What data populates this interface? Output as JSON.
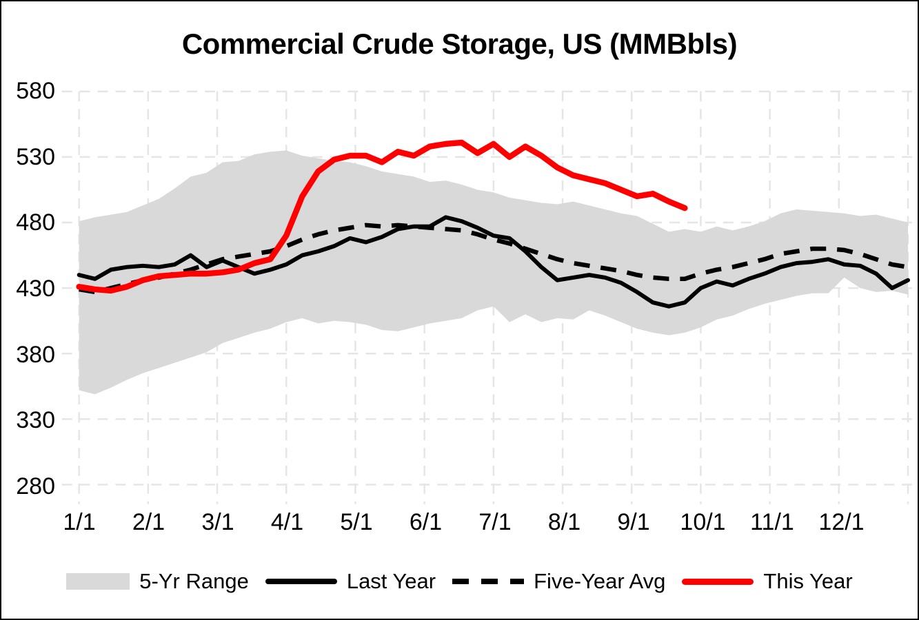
{
  "chart_data": {
    "type": "line",
    "title": "Commercial Crude Storage, US (MMBbls)",
    "subtitle": "",
    "x_axis": {
      "tick_labels": [
        "1/1",
        "2/1",
        "3/1",
        "4/1",
        "5/1",
        "6/1",
        "7/1",
        "8/1",
        "9/1",
        "10/1",
        "11/1",
        "12/1"
      ],
      "unit": "week of year",
      "points_per_year": 53
    },
    "y_axis": {
      "ticks": [
        580,
        530,
        480,
        430,
        380,
        330,
        280
      ],
      "min": 280,
      "max": 580,
      "unit": "MMBbls"
    },
    "grid": "dashed, light gray, horizontal and vertical at month starts",
    "legend_position": "bottom-center",
    "colors": {
      "range_fill": "#D9D9D9",
      "line_black": "#000000",
      "line_red": "#FF0000",
      "gridline": "#E5E5E5",
      "text": "#000000",
      "background": "#FFFFFF"
    },
    "series": [
      {
        "name": "5-Yr Range",
        "type": "band",
        "upper": [
          481,
          484,
          486,
          488,
          493,
          498,
          506,
          515,
          518,
          526,
          527,
          532,
          534,
          535,
          531,
          529,
          527,
          526,
          523,
          519,
          517,
          515,
          511,
          512,
          509,
          505,
          503,
          499,
          497,
          495,
          494,
          496,
          493,
          490,
          487,
          485,
          479,
          473,
          475,
          473,
          477,
          474,
          477,
          481,
          487,
          490,
          489,
          488,
          487,
          485,
          486,
          483,
          480
        ],
        "lower": [
          352,
          349,
          354,
          360,
          365,
          369,
          373,
          377,
          381,
          388,
          392,
          396,
          399,
          404,
          407,
          403,
          405,
          404,
          402,
          398,
          397,
          400,
          403,
          405,
          407,
          413,
          416,
          404,
          410,
          404,
          407,
          406,
          413,
          409,
          404,
          399,
          396,
          394,
          396,
          400,
          406,
          409,
          414,
          418,
          421,
          424,
          426,
          426,
          438,
          430,
          427,
          428,
          425
        ]
      },
      {
        "name": "Last Year",
        "type": "line",
        "dash": "solid",
        "color_key": "line_black",
        "values": [
          440,
          437,
          444,
          446,
          447,
          446,
          448,
          455,
          446,
          451,
          446,
          441,
          444,
          448,
          455,
          458,
          462,
          468,
          465,
          469,
          475,
          477,
          477,
          484,
          481,
          476,
          470,
          468,
          458,
          446,
          436,
          438,
          440,
          438,
          434,
          427,
          419,
          416,
          419,
          430,
          435,
          432,
          437,
          441,
          446,
          449,
          450,
          452,
          448,
          447,
          441,
          430,
          436
        ]
      },
      {
        "name": "Five-Year Avg",
        "type": "line",
        "dash": "dashed",
        "color_key": "line_black",
        "values": [
          429,
          427,
          430,
          433,
          436,
          438,
          441,
          444,
          448,
          452,
          454,
          456,
          458,
          462,
          467,
          471,
          474,
          476,
          478,
          477,
          478,
          477,
          476,
          475,
          474,
          471,
          467,
          464,
          460,
          456,
          452,
          449,
          447,
          445,
          443,
          440,
          438,
          437,
          437,
          441,
          444,
          446,
          449,
          452,
          456,
          458,
          460,
          460,
          459,
          456,
          452,
          448,
          446
        ]
      },
      {
        "name": "This Year",
        "type": "line",
        "dash": "solid",
        "color_key": "line_red",
        "values": [
          431,
          429,
          428,
          431,
          436,
          439,
          440,
          441,
          441,
          442,
          444,
          449,
          452,
          470,
          500,
          519,
          528,
          531,
          531,
          526,
          534,
          531,
          538,
          540,
          541,
          533,
          540,
          530,
          538,
          531,
          522,
          516,
          513,
          510,
          505,
          500,
          502,
          496,
          491
        ],
        "note": "ends in late September"
      }
    ]
  }
}
